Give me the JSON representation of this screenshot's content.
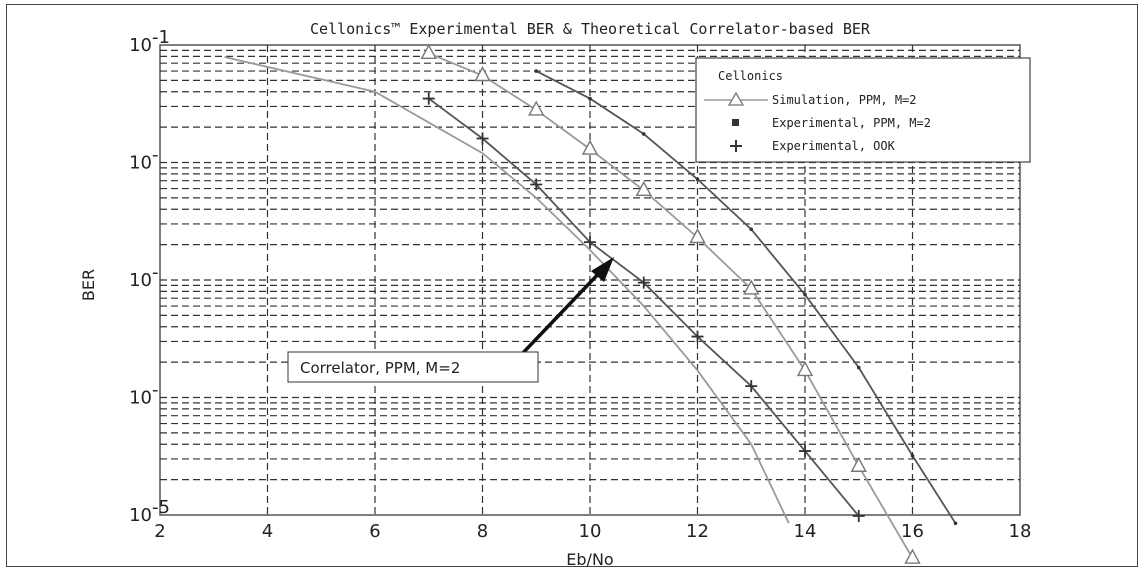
{
  "chart_data": {
    "type": "line",
    "title": "Cellonics™ Experimental BER & Theoretical Correlator-based BER",
    "xlabel": "Eb/No",
    "ylabel": "BER",
    "xlim": [
      2,
      18
    ],
    "ylim": [
      1e-05,
      0.1
    ],
    "yscale": "log",
    "grid": true,
    "x_ticks": [
      "2",
      "4",
      "6",
      "8",
      "10",
      "12",
      "14",
      "16",
      "18"
    ],
    "y_ticks": [
      "10-5",
      "10-1",
      "10-1",
      "10-1",
      "10-1"
    ],
    "y_ticks_bases": [
      "10",
      "10",
      "10",
      "10",
      "10"
    ],
    "y_ticks_exps": [
      "-5",
      "-",
      "-",
      "-",
      "-1"
    ],
    "legend": {
      "title": "Cellonics",
      "placement": "top-right",
      "entries": [
        "Simulation, PPM, M=2",
        "Experimental, PPM, M=2",
        "Experimental, OOK"
      ]
    },
    "series": [
      {
        "name": "Correlator, PPM, M=2",
        "marker": "none",
        "color": "#9a9a9a",
        "x": [
          3.2,
          6,
          8,
          9,
          10,
          11,
          12,
          13,
          13.7
        ],
        "y": [
          0.079,
          0.04,
          0.012,
          0.005,
          0.0018,
          0.0006,
          0.00017,
          4e-05,
          8.5e-06
        ]
      },
      {
        "name": "Experimental, OOK",
        "marker": "plus",
        "color": "#555555",
        "x": [
          7,
          8,
          9,
          10,
          11,
          12,
          13,
          14,
          15
        ],
        "y": [
          0.035,
          0.016,
          0.0065,
          0.0021,
          0.00095,
          0.00033,
          0.000125,
          3.5e-05,
          9.8e-06
        ]
      },
      {
        "name": "Simulation, PPM, M=2",
        "marker": "triangle",
        "color": "#9a9a9a",
        "x": [
          7,
          8,
          9,
          10,
          11,
          12,
          13,
          14,
          15,
          16
        ],
        "y": [
          0.085,
          0.055,
          0.028,
          0.013,
          0.0058,
          0.0023,
          0.00084,
          0.00017,
          2.6e-05,
          4.3e-06
        ]
      },
      {
        "name": "Experimental, PPM, M=2",
        "marker": "dot",
        "color": "#555555",
        "x": [
          9,
          10,
          11,
          12,
          13,
          14,
          15,
          16,
          16.8
        ],
        "y": [
          0.06,
          0.035,
          0.0175,
          0.0072,
          0.0027,
          0.00075,
          0.00018,
          3.2e-05,
          8.5e-06
        ]
      }
    ],
    "annotations": [
      {
        "text": "Correlator, PPM, M=2",
        "arrow_to": {
          "x": 10.3,
          "y": 0.0016
        }
      }
    ]
  }
}
